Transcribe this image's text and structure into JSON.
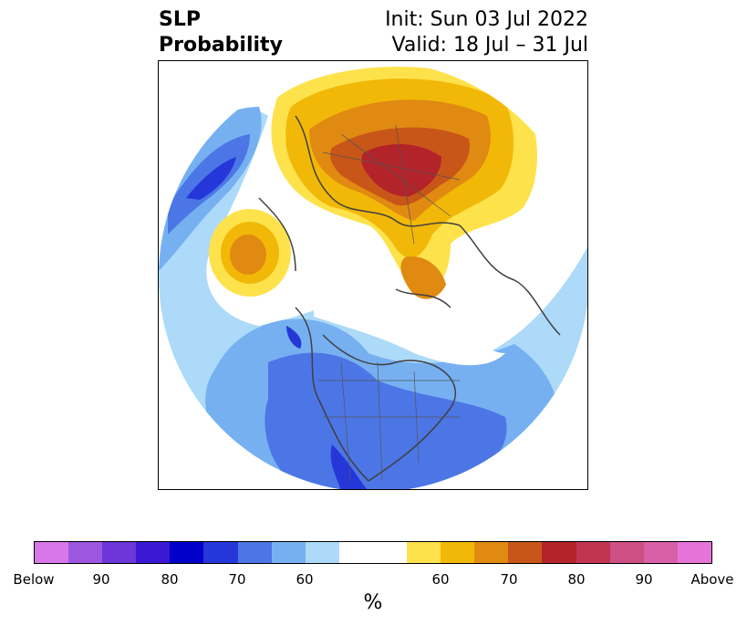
{
  "title": {
    "left_line1": "SLP",
    "left_line2": "Probability",
    "right_line1": "Init: Sun 03 Jul 2022",
    "right_line2": "Valid: 18 Jul – 31 Jul"
  },
  "colorbar": {
    "below_colors": [
      "#d877e8",
      "#9c56e0",
      "#6c36d8",
      "#3a18d4",
      "#0000c8",
      "#2537d8",
      "#4c76e6",
      "#76b0f1",
      "#acdaf8"
    ],
    "neutral_color": "#ffffff",
    "above_colors": [
      "#fde24c",
      "#f2b807",
      "#e08a12",
      "#c75618",
      "#b3232a",
      "#c23452",
      "#cd4f84",
      "#d95fa7",
      "#e674d8"
    ],
    "tick_labels": [
      "Below",
      "90",
      "80",
      "70",
      "60",
      "60",
      "70",
      "80",
      "90",
      "Above"
    ],
    "unit_label": "%"
  }
}
